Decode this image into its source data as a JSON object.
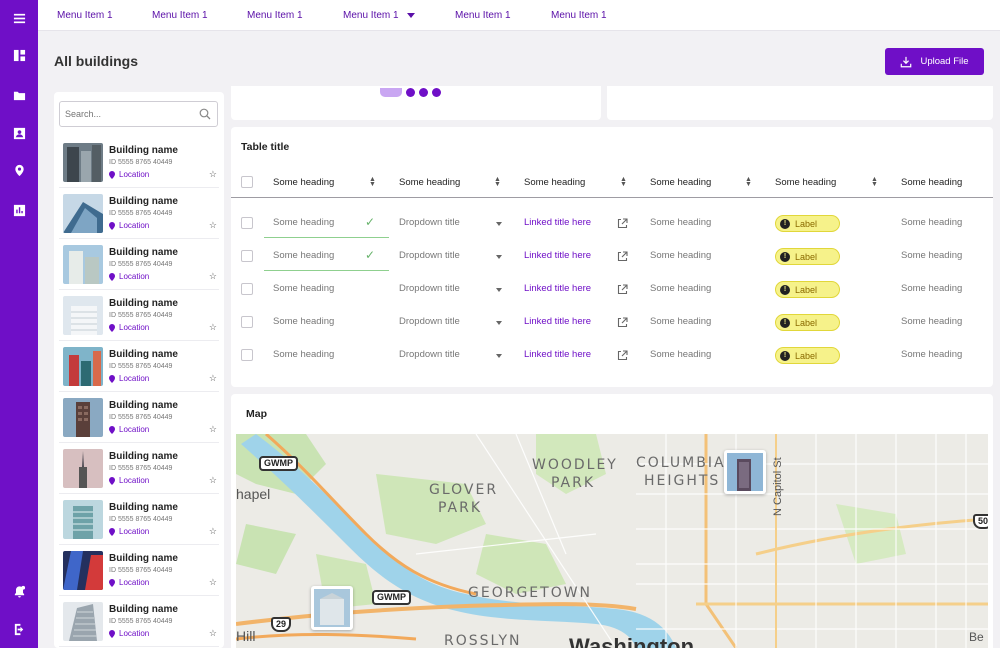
{
  "rail": {
    "icons": [
      "hamburger-icon",
      "dashboard-icon",
      "folder-icon",
      "contacts-icon",
      "location-pin-icon",
      "analytics-icon",
      "notifications-icon",
      "logout-icon"
    ]
  },
  "topbar": {
    "menu": [
      {
        "label": "Menu Item 1",
        "has_dropdown": false
      },
      {
        "label": "Menu Item 1",
        "has_dropdown": false
      },
      {
        "label": "Menu Item 1",
        "has_dropdown": false
      },
      {
        "label": "Menu Item 1",
        "has_dropdown": true
      },
      {
        "label": "Menu Item 1",
        "has_dropdown": false
      },
      {
        "label": "Menu Item 1",
        "has_dropdown": false
      }
    ]
  },
  "page": {
    "title": "All buildings",
    "upload_label": "Upload File"
  },
  "sidebar": {
    "search_placeholder": "Search...",
    "buildings": [
      {
        "name": "Building name",
        "id": "ID 5555 8765 40449",
        "location": "Location"
      },
      {
        "name": "Building name",
        "id": "ID 5555 8765 40449",
        "location": "Location"
      },
      {
        "name": "Building name",
        "id": "ID 5555 8765 40449",
        "location": "Location"
      },
      {
        "name": "Building name",
        "id": "ID 5555 8765 40449",
        "location": "Location"
      },
      {
        "name": "Building name",
        "id": "ID 5555 8765 40449",
        "location": "Location"
      },
      {
        "name": "Building name",
        "id": "ID 5555 8765 40449",
        "location": "Location"
      },
      {
        "name": "Building name",
        "id": "ID 5555 8765 40449",
        "location": "Location"
      },
      {
        "name": "Building name",
        "id": "ID 5555 8765 40449",
        "location": "Location"
      },
      {
        "name": "Building name",
        "id": "ID 5555 8765 40449",
        "location": "Location"
      },
      {
        "name": "Building name",
        "id": "ID 5555 8765 40449",
        "location": "Location"
      }
    ]
  },
  "table": {
    "title": "Table title",
    "headers": [
      "Some heading",
      "Some heading",
      "Some heading",
      "Some heading",
      "Some heading",
      "Some heading"
    ],
    "rows": [
      {
        "c1": "Some heading",
        "c2": "Dropdown title",
        "c3": "Linked title here",
        "c4": "Some heading",
        "badge": "Label",
        "c6": "Some heading",
        "validated": true
      },
      {
        "c1": "Some heading",
        "c2": "Dropdown title",
        "c3": "Linked title here",
        "c4": "Some heading",
        "badge": "Label",
        "c6": "Some heading",
        "validated": true
      },
      {
        "c1": "Some heading",
        "c2": "Dropdown title",
        "c3": "Linked title here",
        "c4": "Some heading",
        "badge": "Label",
        "c6": "Some heading",
        "validated": false
      },
      {
        "c1": "Some heading",
        "c2": "Dropdown title",
        "c3": "Linked title here",
        "c4": "Some heading",
        "badge": "Label",
        "c6": "Some heading",
        "validated": false
      },
      {
        "c1": "Some heading",
        "c2": "Dropdown title",
        "c3": "Linked title here",
        "c4": "Some heading",
        "badge": "Label",
        "c6": "Some heading",
        "validated": false
      }
    ]
  },
  "map": {
    "title": "Map",
    "labels": {
      "gwmp": "GWMP",
      "chapel": "hapel",
      "glover": "GLOVER",
      "park": "PARK",
      "woodley": "WOODLEY",
      "columbia": "COLUMBIA",
      "heights": "HEIGHTS",
      "capitol": "N Capitol St",
      "georgetown": "GEORGETOWN",
      "route": "29",
      "route50": "50",
      "hill": "Hill",
      "rosslyn": "ROSSLYN",
      "washington": "Washington",
      "be": "Be"
    }
  },
  "colors": {
    "brand": "#6f0fc7",
    "badge_bg": "#f6f28a",
    "link": "#6f0fc7",
    "success": "#67b36b"
  }
}
